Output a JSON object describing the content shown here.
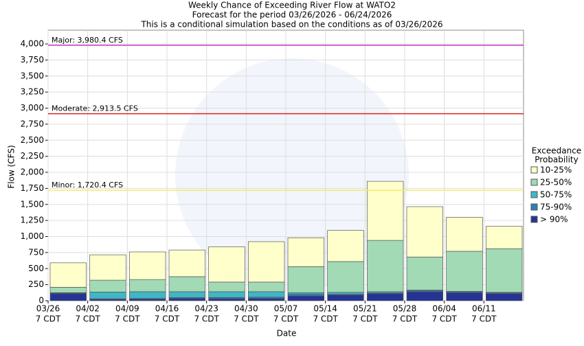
{
  "chart_data": {
    "type": "stacked_bar",
    "title": [
      "Weekly Chance of Exceeding River Flow at WATO2",
      "Forecast for the period 03/26/2026 - 06/24/2026",
      "This is a conditional simulation based on the conditions as of 03/26/2026"
    ],
    "x_label": "Date",
    "y_label": "Flow (CFS)",
    "legend_title": [
      "Exceedance",
      "Probability"
    ],
    "legend_position": "right",
    "grid": true,
    "categories": [
      [
        "03/26",
        "7 CDT"
      ],
      [
        "04/02",
        "7 CDT"
      ],
      [
        "04/09",
        "7 CDT"
      ],
      [
        "04/16",
        "7 CDT"
      ],
      [
        "04/23",
        "7 CDT"
      ],
      [
        "04/30",
        "7 CDT"
      ],
      [
        "05/07",
        "7 CDT"
      ],
      [
        "05/14",
        "7 CDT"
      ],
      [
        "05/21",
        "7 CDT"
      ],
      [
        "05/28",
        "7 CDT"
      ],
      [
        "06/04",
        "7 CDT"
      ],
      [
        "06/11",
        "7 CDT"
      ]
    ],
    "series": [
      {
        "name": "> 90%",
        "color": "#253494",
        "values": [
          110,
          20,
          25,
          35,
          30,
          35,
          75,
          90,
          110,
          140,
          125,
          110
        ]
      },
      {
        "name": "75-90%",
        "color": "#2c7fb8",
        "values": [
          10,
          10,
          10,
          15,
          20,
          20,
          25,
          10,
          10,
          20,
          15,
          15
        ]
      },
      {
        "name": "50-75%",
        "color": "#41b6c4",
        "values": [
          5,
          105,
          105,
          90,
          90,
          85,
          25,
          30,
          20,
          5,
          5,
          5
        ]
      },
      {
        "name": "25-50%",
        "color": "#a1dab4",
        "values": [
          85,
          185,
          190,
          235,
          150,
          150,
          405,
          480,
          800,
          515,
          625,
          680
        ]
      },
      {
        "name": "10-25%",
        "color": "#ffffcc",
        "values": [
          380,
          395,
          430,
          415,
          550,
          630,
          450,
          485,
          920,
          785,
          530,
          350
        ]
      }
    ],
    "thresholds": [
      {
        "value": 3980.4,
        "label": "Major: 3,980.4 CFS",
        "color": "#cc33cc"
      },
      {
        "value": 2913.5,
        "label": "Moderate: 2,913.5 CFS",
        "color": "#dd2222"
      },
      {
        "value": 1720.4,
        "label": "Minor: 1,720.4 CFS",
        "color": "#eeee66"
      }
    ],
    "ylim": [
      0,
      4214
    ],
    "yticks": [
      0,
      {
        "value": 250,
        "label": "250"
      },
      500,
      750,
      {
        "value": 1000,
        "label": "1,000"
      },
      {
        "value": 1250,
        "label": "1,250"
      },
      {
        "value": 1500,
        "label": "1,500"
      },
      {
        "value": 1750,
        "label": "1,750"
      },
      {
        "value": 2000,
        "label": "2,000"
      },
      {
        "value": 2250,
        "label": "2,250"
      },
      {
        "value": 2500,
        "label": "2,500"
      },
      {
        "value": 2750,
        "label": "2,750"
      },
      {
        "value": 3000,
        "label": "3,000"
      },
      {
        "value": 3250,
        "label": "3,250"
      },
      {
        "value": 3500,
        "label": "3,500"
      },
      {
        "value": 3750,
        "label": "3,750"
      },
      {
        "value": 4000,
        "label": "4,000"
      }
    ]
  }
}
